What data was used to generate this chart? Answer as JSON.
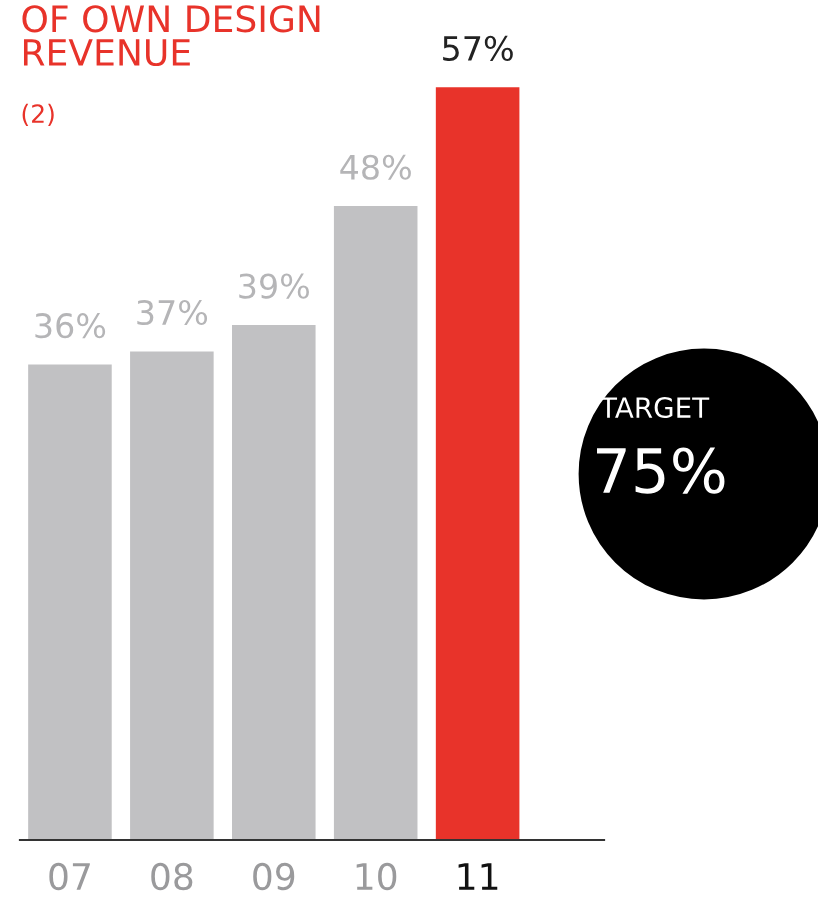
{
  "chart_data": {
    "type": "bar",
    "title": "OF OWN DESIGN\nREVENUE",
    "subtitle": "(2)",
    "categories": [
      "07",
      "08",
      "09",
      "10",
      "11"
    ],
    "values": [
      36,
      37,
      39,
      48,
      57
    ],
    "colors": [
      "#c1c1c3",
      "#c1c1c3",
      "#c1c1c3",
      "#c1c1c3",
      "#e8332a"
    ],
    "value_labels": [
      "36%",
      "37%",
      "39%",
      "48%",
      "57%"
    ],
    "annotations": [
      "TARGET\n75%"
    ],
    "grid": false,
    "legend": false
  }
}
